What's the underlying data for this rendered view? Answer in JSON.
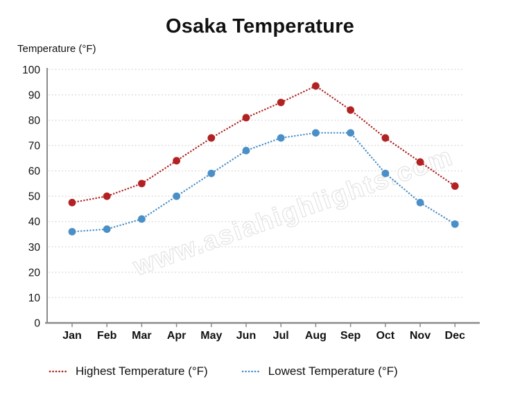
{
  "chart": {
    "title": "Osaka Temperature",
    "y_axis_title": "Temperature (°F)",
    "watermark": "www.asiahighlights.com"
  },
  "legend": {
    "items": [
      {
        "label": "Highest Temperature (°F)",
        "color": "#b22222"
      },
      {
        "label": "Lowest Temperature (°F)",
        "color": "#4a8fc7"
      }
    ]
  },
  "chart_data": {
    "type": "line",
    "title": "Osaka Temperature",
    "ylabel": "Temperature (°F)",
    "xlabel": "",
    "categories": [
      "Jan",
      "Feb",
      "Mar",
      "Apr",
      "May",
      "Jun",
      "Jul",
      "Aug",
      "Sep",
      "Oct",
      "Nov",
      "Dec"
    ],
    "series": [
      {
        "name": "Highest Temperature (°F)",
        "color": "#b22222",
        "style": "dotted",
        "marker": "circle",
        "values": [
          47.5,
          50,
          55,
          64,
          73,
          81,
          87,
          93.5,
          84,
          73,
          63.5,
          54
        ]
      },
      {
        "name": "Lowest Temperature (°F)",
        "color": "#4a8fc7",
        "style": "dotted",
        "marker": "circle",
        "values": [
          36,
          37,
          41,
          50,
          59,
          68,
          73,
          75,
          75,
          59,
          47.5,
          39
        ]
      }
    ],
    "ylim": [
      0,
      100
    ],
    "y_ticks": [
      0,
      10,
      20,
      30,
      40,
      50,
      60,
      70,
      80,
      90,
      100
    ],
    "grid": "horizontal dotted",
    "legend_position": "bottom",
    "watermark": "www.asiahighlights.com",
    "colors": {
      "gridline": "#d8d8d8",
      "axis": "#8a8a8a",
      "text": "#111111"
    }
  }
}
